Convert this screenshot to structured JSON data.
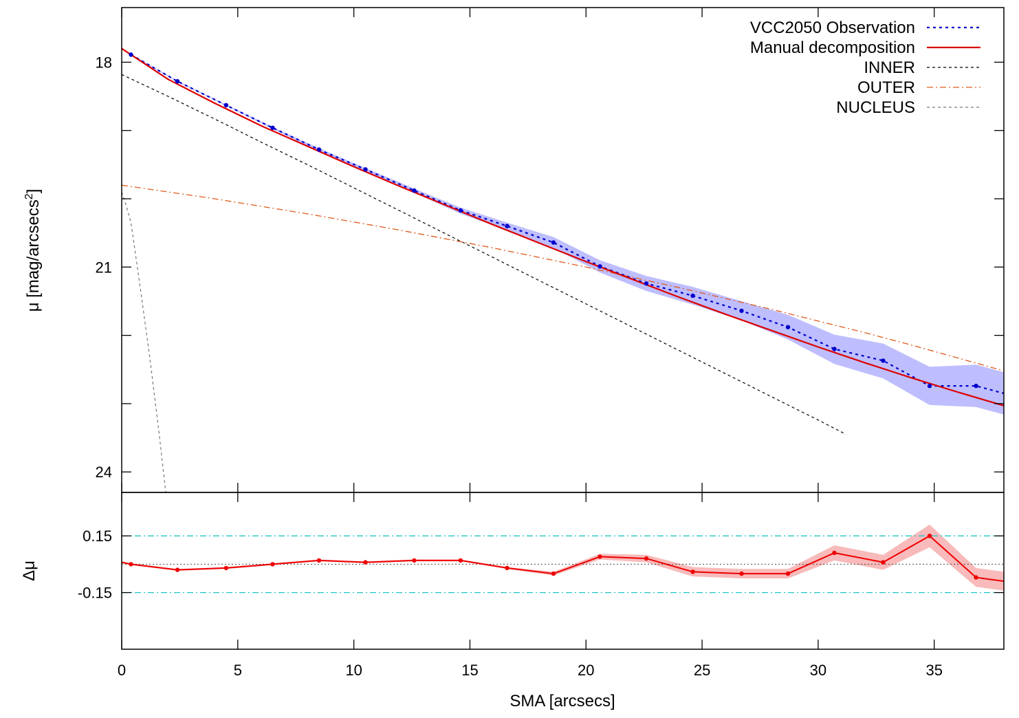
{
  "colors": {
    "observation": "#0000cc",
    "observation_band": "#b3b3ff",
    "manual": "#dd0000",
    "inner": "#000000",
    "outer": "#e05a1a",
    "nucleus": "#777777",
    "residual": "#ee0000",
    "residual_band": "#f7b3b3",
    "threshold": "#22c5c5",
    "zero": "#444444"
  },
  "chart_data": [
    {
      "panel": "top",
      "type": "line",
      "ylabel": "μ [mag/arcsecs",
      "ylabel_sup": "2",
      "ylabel_close": "]",
      "xlim": [
        0,
        38
      ],
      "ylim": [
        17.2,
        24.3
      ],
      "y_inverted": true,
      "yticks": [
        18,
        19,
        20,
        21,
        22,
        23,
        24
      ],
      "ytick_labels": [
        {
          "value": 18,
          "label": "18"
        },
        {
          "value": 21,
          "label": "21"
        },
        {
          "value": 24,
          "label": "24"
        }
      ],
      "legend_position": "top-right",
      "series": [
        {
          "name": "VCC2050 Observation",
          "style": "dotted-with-points",
          "x": [
            0.4,
            2.4,
            4.5,
            6.5,
            8.5,
            10.5,
            12.6,
            14.6,
            16.6,
            18.6,
            20.6,
            22.6,
            24.6,
            26.7,
            28.7,
            30.7,
            32.8,
            34.8,
            36.8,
            38.0
          ],
          "y": [
            17.89,
            18.28,
            18.63,
            18.96,
            19.28,
            19.57,
            19.88,
            20.17,
            20.4,
            20.64,
            20.99,
            21.24,
            21.42,
            21.64,
            21.88,
            22.2,
            22.37,
            22.74,
            22.74,
            22.85
          ],
          "band_upper": [
            17.88,
            18.27,
            18.62,
            18.95,
            19.26,
            19.55,
            19.85,
            20.13,
            20.35,
            20.56,
            20.9,
            21.13,
            21.29,
            21.5,
            21.7,
            21.99,
            22.12,
            22.46,
            22.43,
            22.54
          ],
          "band_lower": [
            17.9,
            18.29,
            18.64,
            18.98,
            19.3,
            19.6,
            19.91,
            20.22,
            20.46,
            20.72,
            21.08,
            21.35,
            21.55,
            21.78,
            22.06,
            22.42,
            22.63,
            23.02,
            23.05,
            23.16
          ]
        },
        {
          "name": "Manual decomposition",
          "style": "solid",
          "x": [
            0,
            2,
            4,
            6,
            8,
            10,
            12,
            14,
            16,
            18,
            20,
            22,
            24,
            26,
            28,
            30,
            32,
            34,
            36,
            38
          ],
          "y": [
            17.8,
            18.25,
            18.6,
            18.93,
            19.23,
            19.53,
            19.82,
            20.1,
            20.38,
            20.65,
            20.92,
            21.18,
            21.44,
            21.69,
            21.93,
            22.17,
            22.4,
            22.62,
            22.83,
            23.03
          ]
        },
        {
          "name": "INNER",
          "style": "dashed",
          "x": [
            0,
            2,
            4,
            6,
            8,
            10,
            12,
            14,
            16,
            18,
            20,
            22,
            24,
            26,
            28,
            29,
            30,
            31.2
          ],
          "y": [
            18.18,
            18.5,
            18.83,
            19.17,
            19.5,
            19.84,
            20.18,
            20.52,
            20.86,
            21.2,
            21.54,
            21.88,
            22.22,
            22.56,
            22.9,
            23.07,
            23.24,
            23.45
          ]
        },
        {
          "name": "OUTER",
          "style": "dash-dot",
          "x": [
            0,
            2,
            4,
            6,
            8,
            10,
            12,
            14,
            16,
            18,
            20,
            22,
            24,
            26,
            28,
            30,
            32,
            34,
            36,
            38
          ],
          "y": [
            19.8,
            19.9,
            20.0,
            20.11,
            20.22,
            20.34,
            20.46,
            20.59,
            20.72,
            20.86,
            21.0,
            21.15,
            21.3,
            21.46,
            21.62,
            21.79,
            21.96,
            22.14,
            22.33,
            22.52
          ]
        },
        {
          "name": "NUCLEUS",
          "style": "dashed",
          "x": [
            0,
            0.15,
            0.4,
            0.8,
            1.2,
            1.6,
            1.9
          ],
          "y": [
            19.9,
            20.05,
            20.35,
            21.3,
            22.3,
            23.4,
            24.3
          ]
        }
      ]
    },
    {
      "panel": "bottom",
      "type": "line",
      "xlabel": "SMA [arcsecs]",
      "ylabel": "Δμ",
      "xlim": [
        0,
        38
      ],
      "ylim": [
        -0.45,
        0.38
      ],
      "xticks": [
        0,
        5,
        10,
        15,
        20,
        25,
        30,
        35
      ],
      "xtick_labels": [
        "0",
        "5",
        "10",
        "15",
        "20",
        "25",
        "30",
        "35"
      ],
      "ytick_labels": [
        {
          "value": 0.15,
          "label": "0.15"
        },
        {
          "value": -0.15,
          "label": "-0.15"
        }
      ],
      "reference_lines": [
        0.15,
        -0.15
      ],
      "zero_line": 0,
      "series": [
        {
          "name": "",
          "style": "solid-with-points",
          "x": [
            0,
            0.4,
            2.4,
            4.5,
            6.5,
            8.5,
            10.5,
            12.6,
            14.6,
            16.6,
            18.6,
            20.6,
            22.6,
            24.6,
            26.7,
            28.7,
            30.7,
            32.8,
            34.8,
            36.8,
            38.0
          ],
          "y": [
            0.01,
            0.0,
            -0.03,
            -0.02,
            0.0,
            0.02,
            0.01,
            0.02,
            0.02,
            -0.02,
            -0.05,
            0.04,
            0.03,
            -0.04,
            -0.05,
            -0.05,
            0.06,
            0.01,
            0.15,
            -0.07,
            -0.09
          ],
          "band_half_width": [
            0.005,
            0.005,
            0.005,
            0.005,
            0.005,
            0.005,
            0.005,
            0.005,
            0.005,
            0.005,
            0.01,
            0.015,
            0.02,
            0.025,
            0.025,
            0.025,
            0.04,
            0.04,
            0.06,
            0.05,
            0.05
          ]
        }
      ]
    }
  ]
}
